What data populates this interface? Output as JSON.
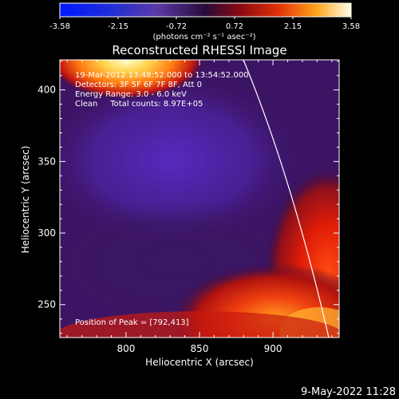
{
  "chart_data": {
    "type": "heatmap",
    "title": "Reconstructed RHESSI Image",
    "xlabel": "Heliocentric X (arcsec)",
    "ylabel": "Heliocentric Y (arcsec)",
    "x_ticks": [
      800,
      850,
      900
    ],
    "y_ticks": [
      250,
      300,
      350,
      400
    ],
    "colorbar": {
      "unit": "(photons cm⁻² s⁻¹ asec⁻²)",
      "min": -3.58,
      "max": 3.58,
      "tick_labels": [
        "-3.58",
        "-2.15",
        "-0.72",
        "0.72",
        "2.15",
        "3.58"
      ]
    },
    "annotations": [
      "19-Mar-2012 13:48:52.000 to 13:54:52.000",
      "Detectors: 3F 5F 6F 7F 8F, Att 0",
      "Energy Range: 3.0 - 6.0 keV",
      "Clean     Total counts: 8.97E+05"
    ],
    "peak_label": "Position of Peak = [792,413]",
    "peak": {
      "x": 792,
      "y": 413
    }
  },
  "footer": {
    "timestamp": "9-May-2022 11:28"
  }
}
